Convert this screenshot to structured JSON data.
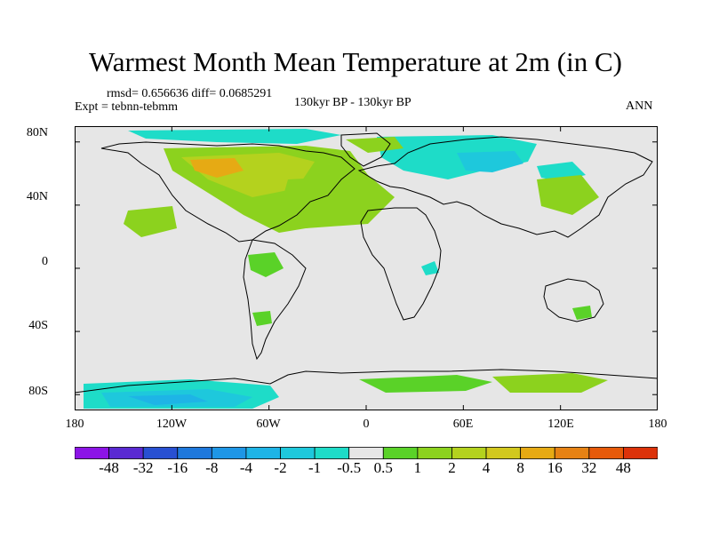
{
  "title": "Warmest Month Mean Temperature at 2m (in C)",
  "stats_line": "rmsd= 0.656636 diff= 0.0685291",
  "experiment_label": "Expt = tebnn-tebmm",
  "center_label": "130kyr BP - 130kyr BP",
  "right_label": "ANN",
  "map": {
    "background_color": "#e6e6e6",
    "projection": "cylindrical-equidistant",
    "lon_range": [
      -180,
      180
    ],
    "lat_range": [
      -90,
      90
    ],
    "coastline_color": "#000000"
  },
  "lon_ticks": [
    "180",
    "120W",
    "60W",
    "0",
    "60E",
    "120E",
    "180"
  ],
  "lat_ticks": [
    "80N",
    "40N",
    "0",
    "40S",
    "80S"
  ],
  "colorbar": {
    "colors": [
      "#8c14e6",
      "#5a2ad2",
      "#2850d2",
      "#1e78dc",
      "#1e96e6",
      "#1eb4e6",
      "#1ec8dc",
      "#1edcc8",
      "#e6e6e6",
      "#5ad228",
      "#8cd21e",
      "#b4d21e",
      "#d2c81e",
      "#e6aa14",
      "#e68214",
      "#e65a0a",
      "#dc320a"
    ],
    "labels": [
      "-48",
      "-32",
      "-16",
      "-8",
      "-4",
      "-2",
      "-1",
      "-0.5",
      "0.5",
      "1",
      "2",
      "4",
      "8",
      "16",
      "32",
      "48"
    ]
  }
}
